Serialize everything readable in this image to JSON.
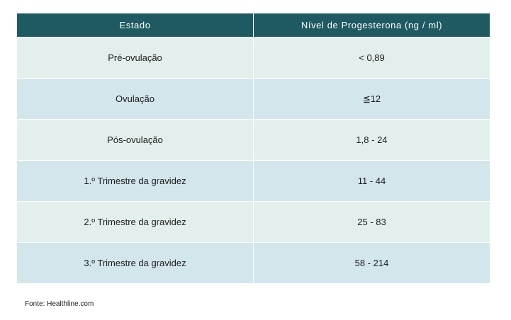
{
  "table": {
    "headers": [
      "Estado",
      "Nível de Progesterona (ng / ml)"
    ],
    "rows": [
      [
        "Pré-ovulação",
        "< 0,89"
      ],
      [
        "Ovulação",
        "≦12"
      ],
      [
        "Pós-ovulação",
        "1,8 - 24"
      ],
      [
        "1.º Trimestre da gravidez",
        "11 - 44"
      ],
      [
        "2.º Trimestre da gravidez",
        "25 - 83"
      ],
      [
        "3.º Trimestre da gravidez",
        "58 - 214"
      ]
    ]
  },
  "source": "Fonte: Healthline.com",
  "colors": {
    "header_bg": "#1f5a62",
    "row_light": "#e3efec",
    "row_dark": "#d3e6ec"
  }
}
